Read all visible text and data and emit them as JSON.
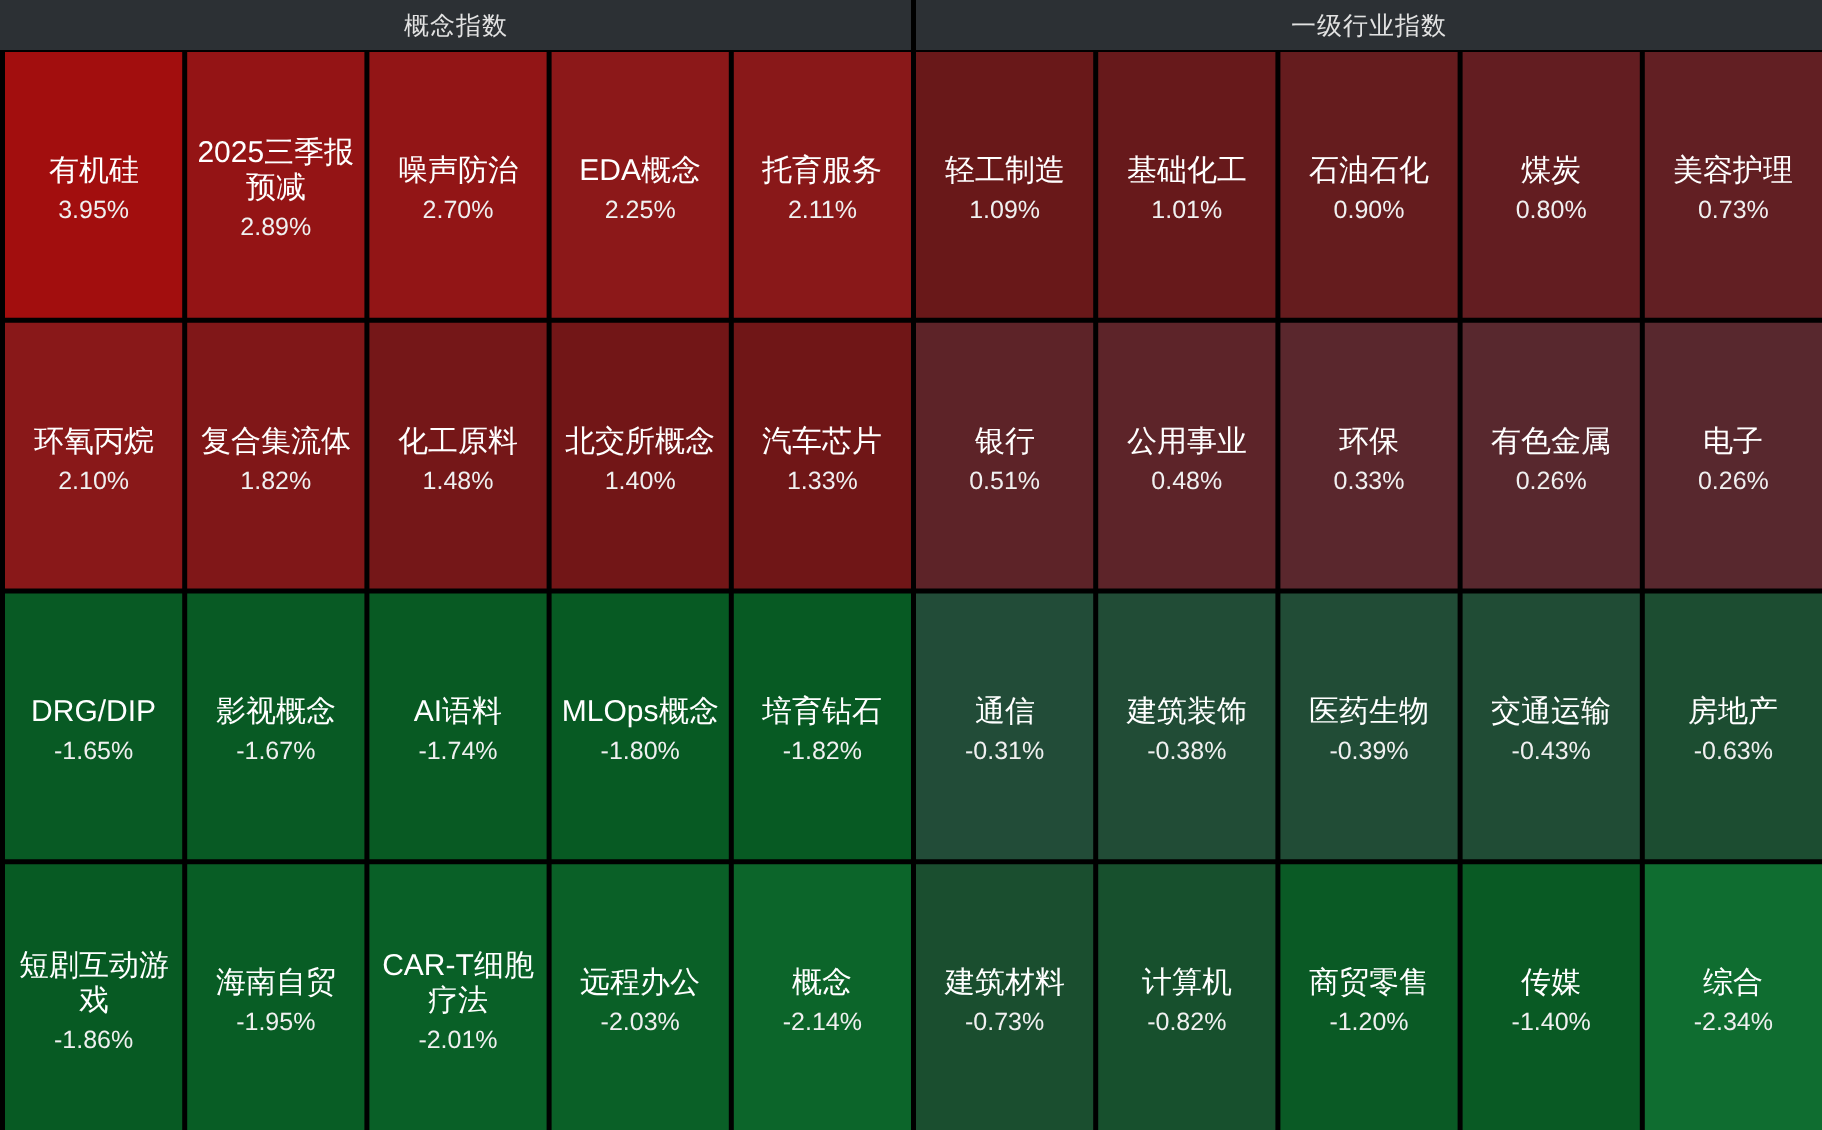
{
  "chart_data": [
    {
      "type": "other",
      "title": "概念指数",
      "categories": [
        "有机硅",
        "2025三季报预减",
        "噪声防治",
        "EDA概念",
        "托育服务",
        "环氧丙烷",
        "复合集流体",
        "化工原料",
        "北交所概念",
        "汽车芯片",
        "DRG/DIP",
        "影视概念",
        "AI语料",
        "MLOps概念",
        "培育钻石",
        "短剧互动游戏",
        "海南自贸",
        "CAR-T细胞疗法",
        "远程办公",
        "概念"
      ],
      "values": [
        3.95,
        2.89,
        2.7,
        2.25,
        2.11,
        2.1,
        1.82,
        1.48,
        1.4,
        1.33,
        -1.65,
        -1.67,
        -1.74,
        -1.8,
        -1.82,
        -1.86,
        -1.95,
        -2.01,
        -2.03,
        -2.14
      ],
      "value_labels": [
        "3.95%",
        "2.89%",
        "2.70%",
        "2.25%",
        "2.11%",
        "2.10%",
        "1.82%",
        "1.48%",
        "1.40%",
        "1.33%",
        "-1.65%",
        "-1.67%",
        "-1.74%",
        "-1.80%",
        "-1.82%",
        "-1.86%",
        "-1.95%",
        "-2.01%",
        "-2.03%",
        "-2.14%"
      ]
    },
    {
      "type": "other",
      "title": "一级行业指数",
      "categories": [
        "轻工制造",
        "基础化工",
        "石油石化",
        "煤炭",
        "美容护理",
        "银行",
        "公用事业",
        "环保",
        "有色金属",
        "电子",
        "通信",
        "建筑装饰",
        "医药生物",
        "交通运输",
        "房地产",
        "建筑材料",
        "计算机",
        "商贸零售",
        "传媒",
        "综合"
      ],
      "values": [
        1.09,
        1.01,
        0.9,
        0.8,
        0.73,
        0.51,
        0.48,
        0.33,
        0.26,
        0.26,
        -0.31,
        -0.38,
        -0.39,
        -0.43,
        -0.63,
        -0.73,
        -0.82,
        -1.2,
        -1.4,
        -2.34
      ],
      "value_labels": [
        "1.09%",
        "1.01%",
        "0.90%",
        "0.80%",
        "0.73%",
        "0.51%",
        "0.48%",
        "0.33%",
        "0.26%",
        "0.26%",
        "-0.31%",
        "-0.38%",
        "-0.39%",
        "-0.43%",
        "-0.63%",
        "-0.73%",
        "-0.82%",
        "-1.20%",
        "-1.40%",
        "-2.34%"
      ]
    }
  ]
}
